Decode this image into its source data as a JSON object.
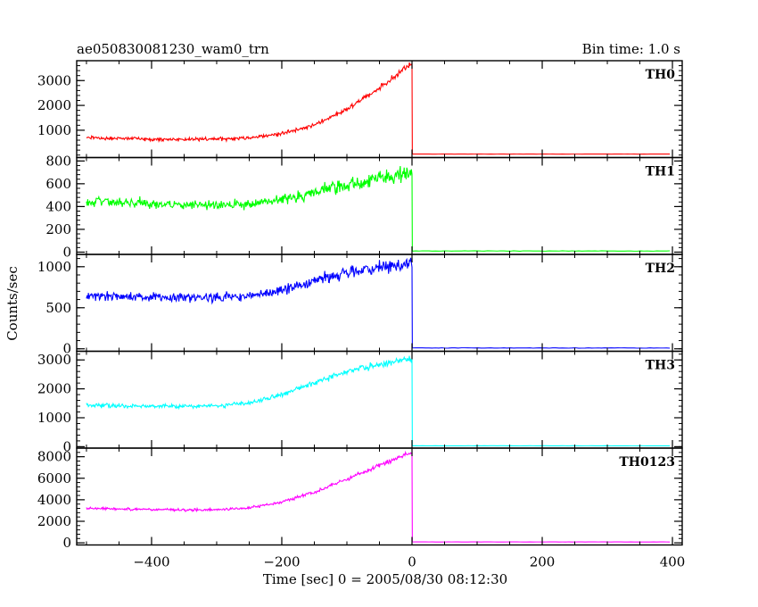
{
  "header": {
    "left_title": "ae050830081230_wam0_trn",
    "right_title": "Bin time: 1.0 s"
  },
  "chart_data": {
    "type": "line",
    "title": "ae050830081230_wam0_trn",
    "subtitle": "Bin time: 1.0 s",
    "xlabel": "Time [sec] 0 = 2005/08/30 08:12:30",
    "ylabel": "Counts/sec",
    "xlim": [
      -515,
      415
    ],
    "x_ticks": [
      -400,
      -200,
      0,
      200,
      400
    ],
    "x_tick_labels": [
      "−400",
      "−200",
      "0",
      "200",
      "400"
    ],
    "panels": [
      {
        "name": "TH0",
        "color": "#ff0000",
        "ylim": [
          -100,
          3800
        ],
        "y_ticks": [
          1000,
          2000,
          3000
        ],
        "y_tick_labels": [
          "1000",
          "2000",
          "3000"
        ],
        "x": [
          -500,
          -450,
          -400,
          -350,
          -300,
          -250,
          -200,
          -150,
          -100,
          -50,
          -20,
          -5
        ],
        "values": [
          700,
          670,
          640,
          630,
          640,
          700,
          860,
          1200,
          1850,
          2700,
          3300,
          3600
        ],
        "noise": 70,
        "drop_to": 40
      },
      {
        "name": "TH1",
        "color": "#00ff00",
        "ylim": [
          -20,
          830
        ],
        "y_ticks": [
          0,
          200,
          400,
          600,
          800
        ],
        "y_tick_labels": [
          "0",
          "200",
          "400",
          "600",
          "800"
        ],
        "x": [
          -500,
          -450,
          -400,
          -350,
          -300,
          -250,
          -200,
          -150,
          -100,
          -50,
          -20,
          -5
        ],
        "values": [
          450,
          440,
          425,
          415,
          410,
          420,
          460,
          520,
          590,
          650,
          680,
          700
        ],
        "noise": 45,
        "drop_to": 10
      },
      {
        "name": "TH2",
        "color": "#0000ff",
        "ylim": [
          -30,
          1150
        ],
        "y_ticks": [
          0,
          500,
          1000
        ],
        "y_tick_labels": [
          "0",
          "500",
          "1000"
        ],
        "x": [
          -500,
          -450,
          -400,
          -350,
          -300,
          -250,
          -200,
          -150,
          -100,
          -50,
          -20,
          -5
        ],
        "values": [
          640,
          635,
          625,
          620,
          625,
          650,
          720,
          820,
          920,
          990,
          1010,
          1030
        ],
        "noise": 55,
        "drop_to": 10
      },
      {
        "name": "TH3",
        "color": "#00ffff",
        "ylim": [
          -50,
          3300
        ],
        "y_ticks": [
          0,
          1000,
          2000,
          3000
        ],
        "y_tick_labels": [
          "0",
          "1000",
          "2000",
          "3000"
        ],
        "x": [
          -500,
          -450,
          -400,
          -350,
          -300,
          -250,
          -200,
          -150,
          -100,
          -50,
          -20,
          -5
        ],
        "values": [
          1430,
          1420,
          1410,
          1400,
          1420,
          1520,
          1800,
          2200,
          2600,
          2850,
          2950,
          3000
        ],
        "noise": 70,
        "drop_to": 30
      },
      {
        "name": "TH0123",
        "color": "#ff00ff",
        "ylim": [
          -200,
          8800
        ],
        "y_ticks": [
          0,
          2000,
          4000,
          6000,
          8000
        ],
        "y_tick_labels": [
          "0",
          "2000",
          "4000",
          "6000",
          "8000"
        ],
        "x": [
          -500,
          -450,
          -400,
          -350,
          -300,
          -250,
          -200,
          -150,
          -100,
          -50,
          -20,
          -5
        ],
        "values": [
          3200,
          3150,
          3100,
          3050,
          3080,
          3250,
          3800,
          4700,
          5900,
          7200,
          7900,
          8300
        ],
        "noise": 120,
        "drop_to": 80
      }
    ],
    "grid": false,
    "legend": "none"
  }
}
